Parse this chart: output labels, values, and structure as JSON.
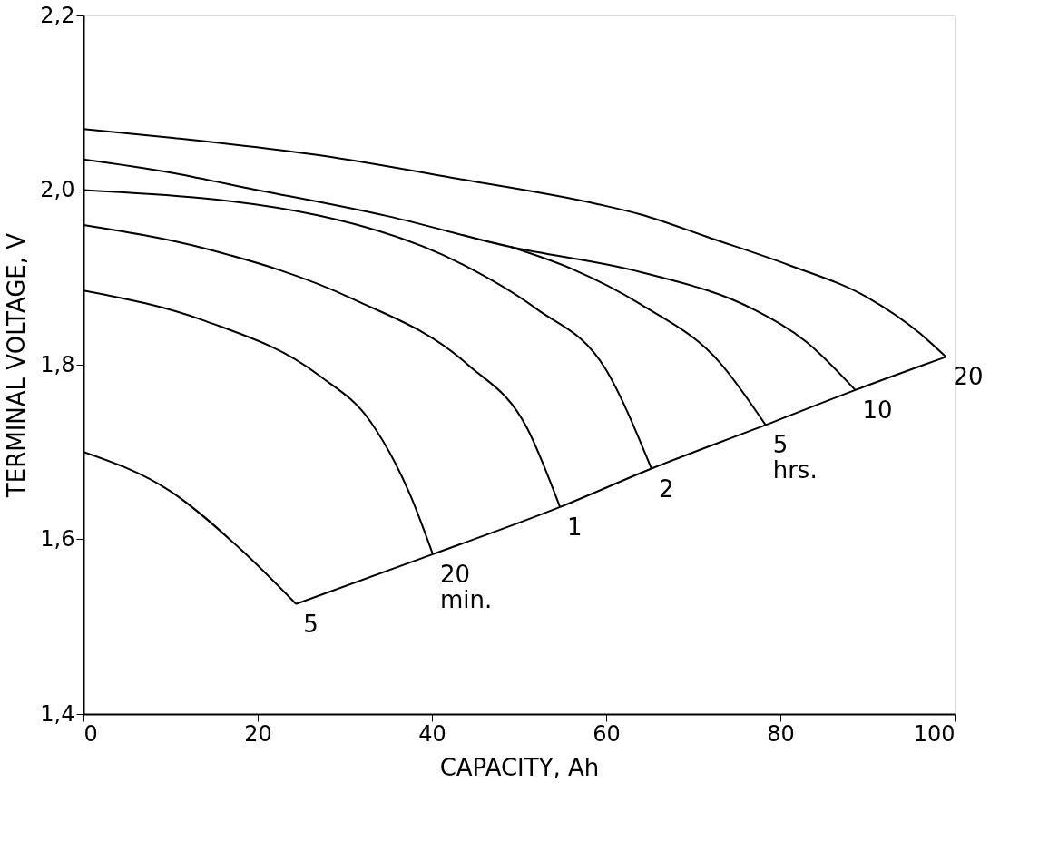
{
  "chart_data": {
    "type": "line",
    "xlabel": "CAPACITY, Ah",
    "ylabel": "TERMINAL VOLTAGE, V",
    "xlim": [
      0,
      100
    ],
    "xticks": [
      0,
      20,
      40,
      60,
      80,
      100
    ],
    "ylim": [
      1.4,
      2.2
    ],
    "yticks": [
      {
        "value": 1.4,
        "label": "1,4"
      },
      {
        "value": 1.6,
        "label": "1,6"
      },
      {
        "value": 1.8,
        "label": "1,8"
      },
      {
        "value": 2.0,
        "label": "2,0"
      },
      {
        "value": 2.2,
        "label": "2,2"
      }
    ],
    "marker": "none",
    "line_style": "solid",
    "series": [
      {
        "color": "#000000",
        "x": [
          0,
          10,
          27,
          43,
          59,
          64,
          72,
          81,
          90,
          96,
          99
        ],
        "values": [
          2.07,
          2.06,
          2.04,
          2.013,
          1.984,
          1.972,
          1.945,
          1.914,
          1.877,
          1.836,
          1.809
        ]
      },
      {
        "color": "#000000",
        "x": [
          0,
          10,
          18,
          35,
          49,
          64,
          77,
          83,
          88.6
        ],
        "values": [
          2.035,
          2.02,
          2.004,
          1.97,
          1.935,
          1.906,
          1.863,
          1.826,
          1.771
        ]
      },
      {
        "color": "#000000",
        "x": [
          49,
          56,
          64,
          73,
          78.3
        ],
        "values": [
          1.935,
          1.91,
          1.869,
          1.803,
          1.731
        ]
      },
      {
        "color": "#000000",
        "x": [
          0,
          27,
          43.5,
          52,
          60,
          65.2
        ],
        "values": [
          2.0,
          1.971,
          1.915,
          1.864,
          1.794,
          1.681
        ]
      },
      {
        "color": "#000000",
        "x": [
          0,
          14,
          31,
          44,
          51,
          54.7
        ],
        "values": [
          1.96,
          1.933,
          1.875,
          1.801,
          1.726,
          1.637
        ]
      },
      {
        "color": "#000000",
        "x": [
          0,
          14,
          27,
          33,
          37.5,
          40.1
        ],
        "values": [
          1.885,
          1.85,
          1.788,
          1.734,
          1.651,
          1.583
        ]
      },
      {
        "color": "#000000",
        "x": [
          0,
          10,
          18,
          24.4
        ],
        "values": [
          1.7,
          1.655,
          1.589,
          1.526
        ]
      },
      {
        "color": "#000000",
        "x": [
          24.4,
          40.1,
          54.7,
          65.2,
          78.3,
          88.6,
          99
        ],
        "values": [
          1.526,
          1.583,
          1.637,
          1.681,
          1.731,
          1.771,
          1.809
        ]
      }
    ],
    "annotations": [
      {
        "text": "5",
        "x": 24.4,
        "y": 1.526
      },
      {
        "text": "20\nmin.",
        "x": 40.1,
        "y": 1.583
      },
      {
        "text": "1",
        "x": 54.7,
        "y": 1.637
      },
      {
        "text": "2",
        "x": 65.2,
        "y": 1.681
      },
      {
        "text": "5\nhrs.",
        "x": 78.3,
        "y": 1.731
      },
      {
        "text": "10",
        "x": 88.6,
        "y": 1.771
      },
      {
        "text": "20",
        "x": 99,
        "y": 1.809
      }
    ]
  }
}
